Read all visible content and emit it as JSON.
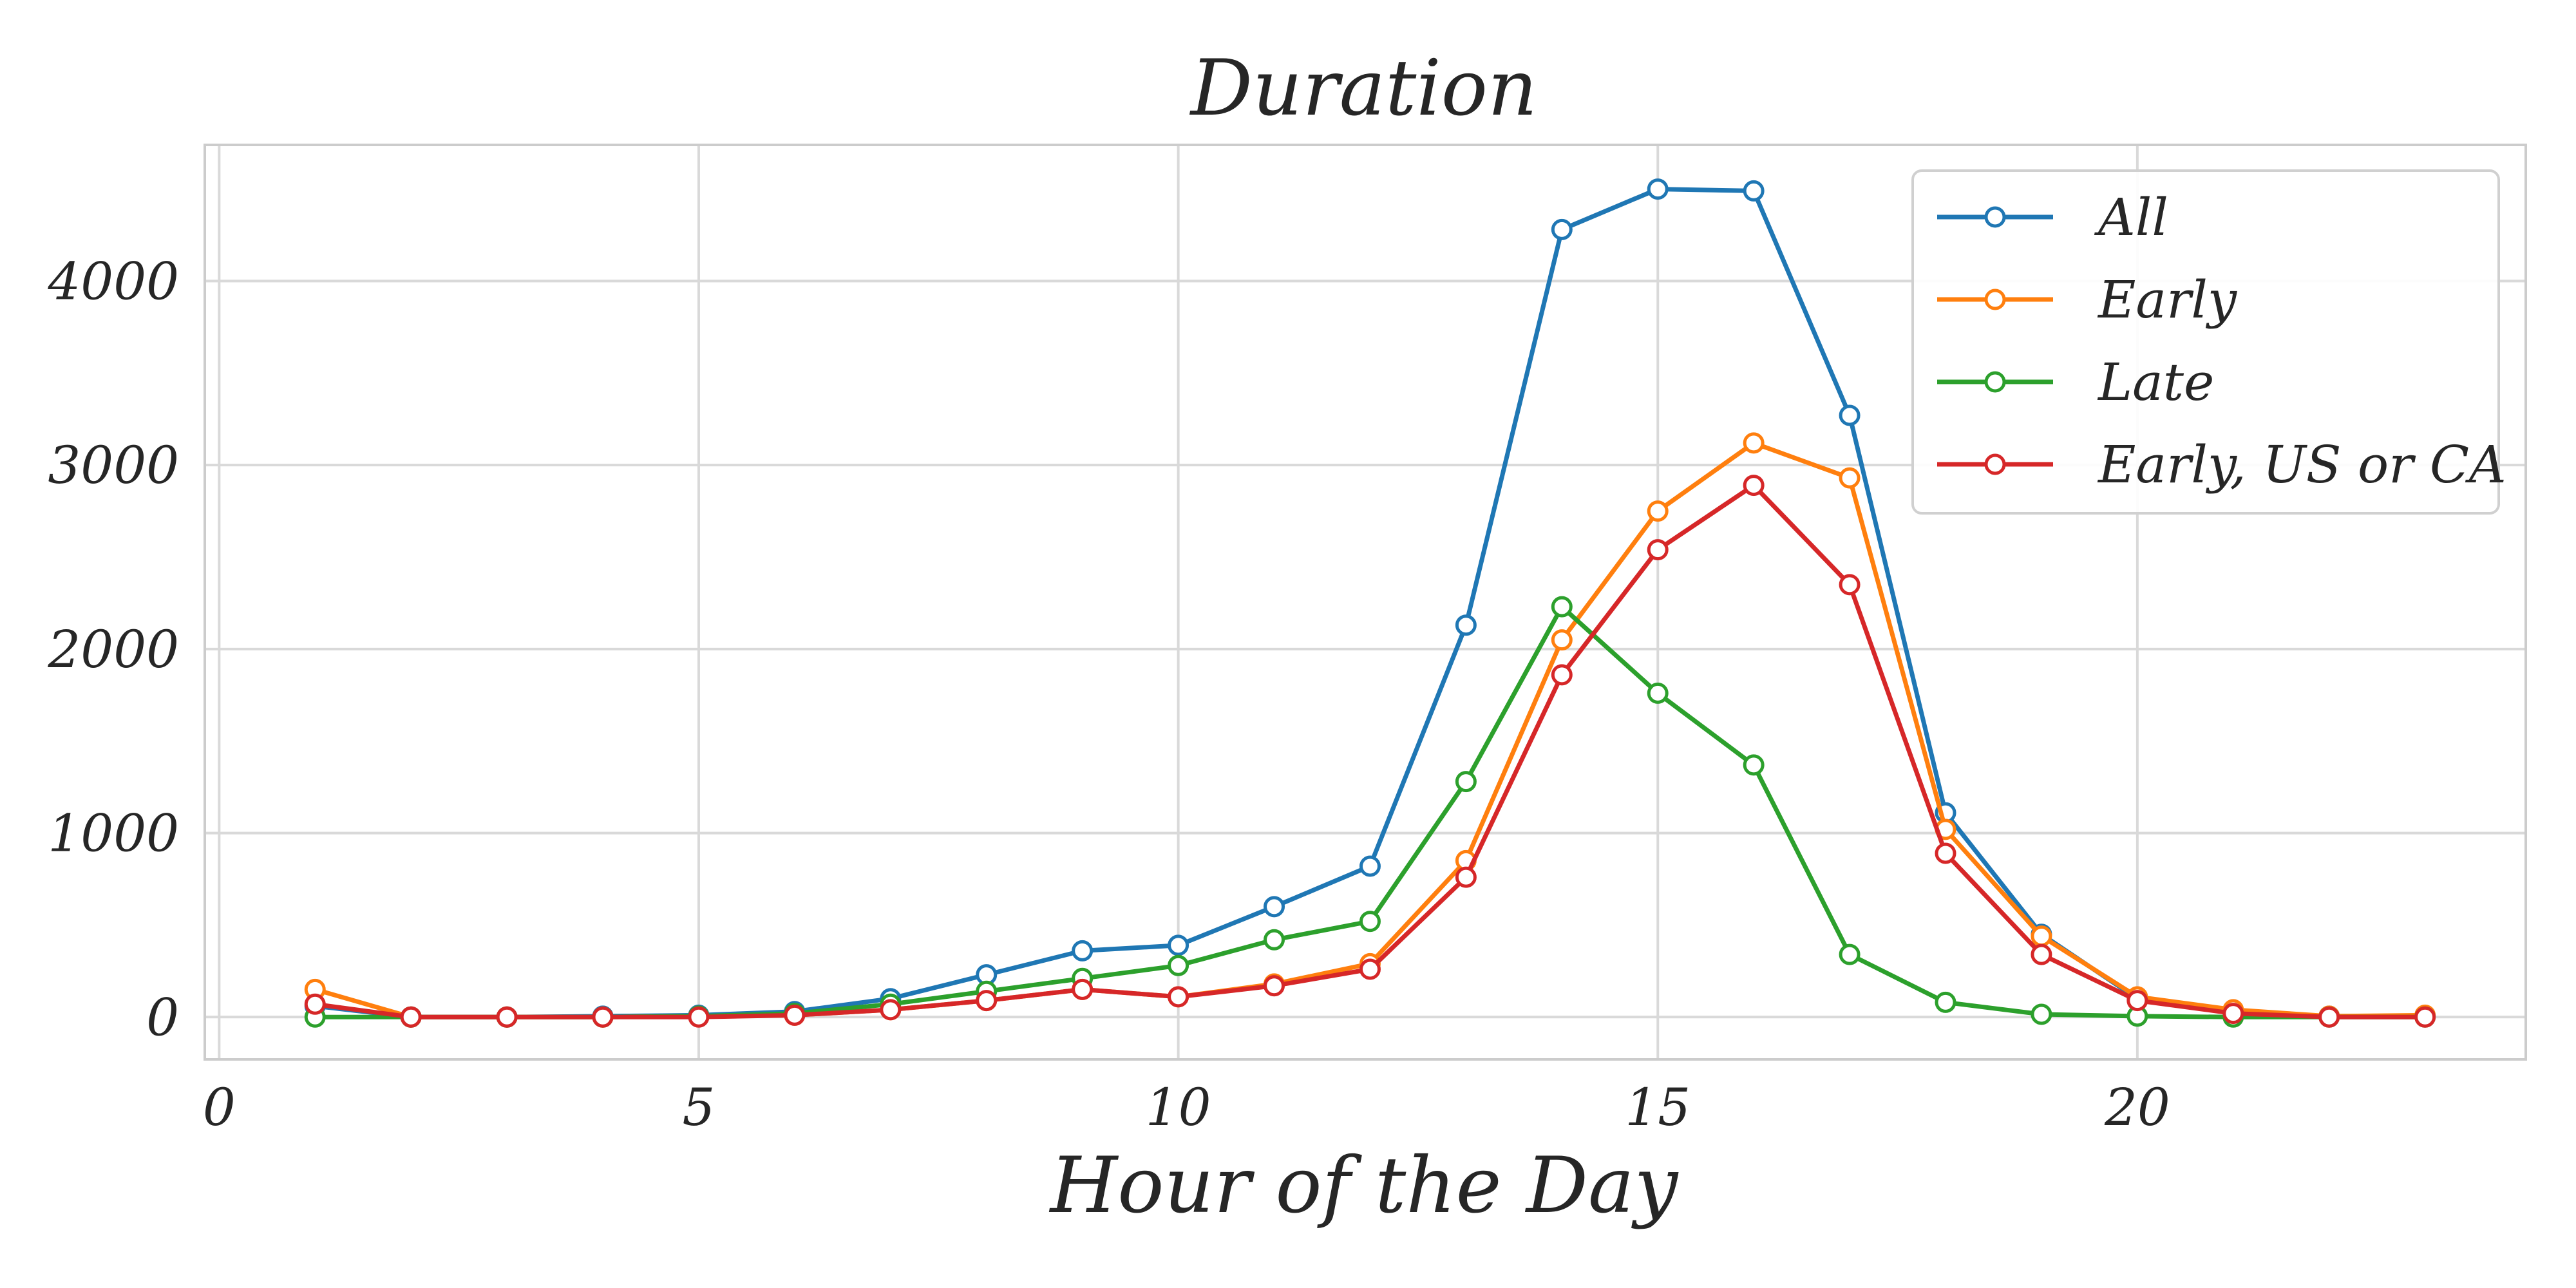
{
  "chart_data": {
    "type": "line",
    "title": "Duration",
    "xlabel": "Hour of the Day",
    "ylabel": "",
    "xlim": [
      -0.15,
      24.05
    ],
    "ylim": [
      -230,
      4740
    ],
    "xticks": [
      0,
      5,
      10,
      15,
      20
    ],
    "yticks": [
      0,
      1000,
      2000,
      3000,
      4000
    ],
    "grid": true,
    "legend_position": "top-right",
    "marker": "open-circle",
    "x": [
      1,
      2,
      3,
      4,
      5,
      6,
      7,
      8,
      9,
      10,
      11,
      12,
      13,
      14,
      15,
      16,
      17,
      18,
      19,
      20,
      21,
      22,
      23
    ],
    "series": [
      {
        "name": "All",
        "color": "#1f77b4",
        "values": [
          60,
          0,
          0,
          5,
          10,
          30,
          100,
          230,
          360,
          390,
          600,
          820,
          2130,
          4280,
          4500,
          4490,
          3270,
          1110,
          450,
          100,
          20,
          5,
          5
        ]
      },
      {
        "name": "Early",
        "color": "#ff7f0e",
        "values": [
          150,
          0,
          0,
          0,
          5,
          10,
          40,
          90,
          150,
          110,
          180,
          290,
          850,
          2050,
          2750,
          3120,
          2930,
          1020,
          440,
          110,
          40,
          5,
          10
        ]
      },
      {
        "name": "Late",
        "color": "#2ca02c",
        "values": [
          0,
          0,
          0,
          0,
          5,
          20,
          70,
          140,
          210,
          280,
          420,
          520,
          1280,
          2230,
          1760,
          1370,
          340,
          80,
          15,
          5,
          0,
          0,
          0
        ]
      },
      {
        "name": "Early, US or CA",
        "color": "#d62728",
        "values": [
          70,
          0,
          0,
          0,
          0,
          10,
          40,
          90,
          150,
          110,
          170,
          260,
          760,
          1860,
          2540,
          2890,
          2350,
          890,
          340,
          90,
          20,
          0,
          0
        ]
      }
    ]
  }
}
